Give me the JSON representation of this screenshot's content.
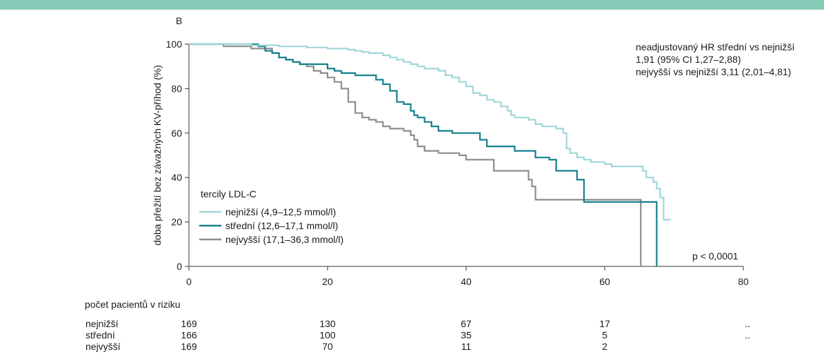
{
  "header_bar_color": "#86cab8",
  "panel_label": "B",
  "annotation": {
    "line1": "neadjustovaný HR střední vs nejnižší",
    "line2": "1,91 (95% CI 1,27–2,88)",
    "line3": "nejvyšší vs nejnižší 3,11 (2,01–4,81)"
  },
  "p_value": "p < 0,0001",
  "legend_title": "tercily LDL-C",
  "risk_table": {
    "title": "počet pacientů v riziku",
    "columns_at": [
      0,
      20,
      40,
      60,
      80
    ],
    "rows": [
      {
        "name": "nejnižší",
        "values": [
          "169",
          "130",
          "67",
          "17",
          ".."
        ]
      },
      {
        "name": "střední",
        "values": [
          "166",
          "100",
          "35",
          "5",
          ".."
        ]
      },
      {
        "name": "nejvyšší",
        "values": [
          "169",
          "70",
          "11",
          "2",
          ""
        ]
      }
    ]
  },
  "chart_data": {
    "type": "line",
    "step": true,
    "title": "",
    "xlabel": "",
    "ylabel": "doba přežití bez závažných KV-příhod (%)",
    "xlim": [
      0,
      80
    ],
    "ylim": [
      0,
      100
    ],
    "xticks": [
      "0",
      "20",
      "40",
      "60",
      "80"
    ],
    "yticks": [
      "0",
      "20",
      "40",
      "60",
      "80",
      "100"
    ],
    "grid": false,
    "legend_position": "lower-left",
    "series": [
      {
        "name": "nejnižší (4,9–12,5 mmol/l)",
        "color": "#9fd6d8",
        "points": [
          [
            0,
            100
          ],
          [
            8,
            100
          ],
          [
            9,
            99.5
          ],
          [
            13,
            99
          ],
          [
            17,
            98.5
          ],
          [
            20,
            98
          ],
          [
            23,
            97.5
          ],
          [
            24,
            97
          ],
          [
            25,
            96.5
          ],
          [
            26,
            96
          ],
          [
            28,
            95
          ],
          [
            29,
            94
          ],
          [
            30,
            93
          ],
          [
            31,
            92
          ],
          [
            32,
            91
          ],
          [
            33,
            90
          ],
          [
            34,
            89
          ],
          [
            36,
            88
          ],
          [
            37,
            86
          ],
          [
            38,
            85
          ],
          [
            39,
            83
          ],
          [
            40,
            81
          ],
          [
            41,
            78
          ],
          [
            42,
            77
          ],
          [
            43,
            75
          ],
          [
            44,
            74
          ],
          [
            45,
            72
          ],
          [
            46,
            70
          ],
          [
            46.5,
            68
          ],
          [
            47,
            67
          ],
          [
            49,
            66
          ],
          [
            50,
            64
          ],
          [
            51,
            63
          ],
          [
            53,
            62
          ],
          [
            54,
            60
          ],
          [
            54.5,
            53
          ],
          [
            55,
            51
          ],
          [
            56,
            49
          ],
          [
            57,
            48
          ],
          [
            58,
            47
          ],
          [
            60,
            46
          ],
          [
            61,
            45
          ],
          [
            65,
            45
          ],
          [
            65.5,
            43
          ],
          [
            66,
            40
          ],
          [
            67,
            38
          ],
          [
            67.5,
            35
          ],
          [
            68,
            31
          ],
          [
            68.5,
            21
          ],
          [
            69.5,
            21
          ]
        ]
      },
      {
        "name": "střední (12,6–17,1 mmol/l)",
        "color": "#137f8d",
        "points": [
          [
            0,
            100
          ],
          [
            7,
            100
          ],
          [
            10,
            99
          ],
          [
            11,
            97
          ],
          [
            12,
            96
          ],
          [
            13,
            94
          ],
          [
            14,
            93
          ],
          [
            15,
            92
          ],
          [
            16,
            91
          ],
          [
            20,
            89
          ],
          [
            21,
            88
          ],
          [
            22,
            87
          ],
          [
            24,
            86
          ],
          [
            27,
            84
          ],
          [
            28,
            82
          ],
          [
            29,
            79
          ],
          [
            30,
            74
          ],
          [
            31,
            73
          ],
          [
            32,
            70
          ],
          [
            32.5,
            68
          ],
          [
            33,
            67
          ],
          [
            34,
            65
          ],
          [
            35,
            63
          ],
          [
            36,
            61
          ],
          [
            38,
            60
          ],
          [
            40,
            60
          ],
          [
            42,
            57
          ],
          [
            43,
            54
          ],
          [
            46,
            54
          ],
          [
            47,
            52
          ],
          [
            49,
            52
          ],
          [
            50,
            49
          ],
          [
            52,
            48
          ],
          [
            53,
            43
          ],
          [
            55,
            43
          ],
          [
            56,
            39
          ],
          [
            57,
            29
          ],
          [
            67,
            29
          ],
          [
            67.5,
            0
          ]
        ]
      },
      {
        "name": "nejvyšší (17,1–36,3 mmol/l)",
        "color": "#8c8c8c",
        "points": [
          [
            0,
            100
          ],
          [
            5,
            99
          ],
          [
            8,
            99
          ],
          [
            9,
            98
          ],
          [
            12,
            96
          ],
          [
            13,
            94
          ],
          [
            14,
            93
          ],
          [
            15,
            92
          ],
          [
            16,
            91
          ],
          [
            17,
            90
          ],
          [
            18,
            88
          ],
          [
            19,
            87
          ],
          [
            20,
            85
          ],
          [
            21,
            83
          ],
          [
            22,
            80
          ],
          [
            23,
            74
          ],
          [
            24,
            69
          ],
          [
            25,
            67
          ],
          [
            26,
            66
          ],
          [
            27,
            65
          ],
          [
            28,
            63
          ],
          [
            29,
            62
          ],
          [
            30,
            62
          ],
          [
            31,
            61
          ],
          [
            32,
            59
          ],
          [
            32.5,
            57
          ],
          [
            33,
            54
          ],
          [
            34,
            52
          ],
          [
            36,
            51
          ],
          [
            39,
            50
          ],
          [
            40,
            48
          ],
          [
            43,
            48
          ],
          [
            44,
            43
          ],
          [
            48,
            43
          ],
          [
            49,
            39
          ],
          [
            49.5,
            36
          ],
          [
            50,
            30
          ],
          [
            65,
            30
          ],
          [
            65.2,
            0
          ]
        ]
      }
    ]
  }
}
